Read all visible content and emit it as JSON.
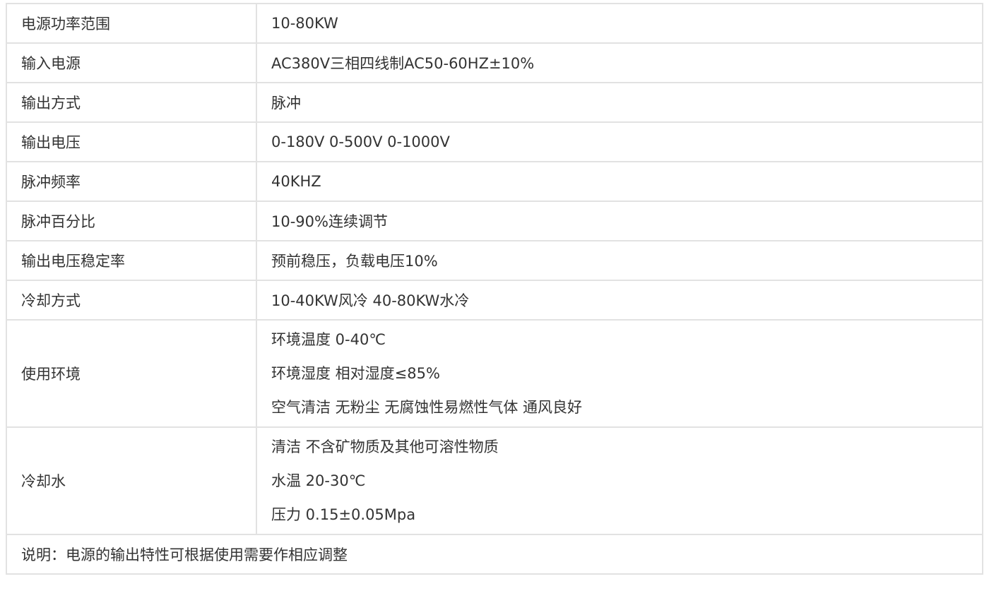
{
  "rows": [
    {
      "label": "电源功率范围",
      "values": [
        "10-80KW"
      ]
    },
    {
      "label": "输入电源",
      "values": [
        "AC380V三相四线制AC50-60HZ±10%"
      ]
    },
    {
      "label": "输出方式",
      "values": [
        "脉冲"
      ]
    },
    {
      "label": "输出电压",
      "values": [
        "0-180V 0-500V 0-1000V"
      ]
    },
    {
      "label": "脉冲频率",
      "values": [
        "40KHZ"
      ]
    },
    {
      "label": "脉冲百分比",
      "values": [
        "10-90%连续调节"
      ]
    },
    {
      "label": "输出电压稳定率",
      "values": [
        "预前稳压，负载电压10%"
      ]
    },
    {
      "label": "冷却方式",
      "values": [
        "10-40KW风冷 40-80KW水冷"
      ]
    },
    {
      "label": "使用环境",
      "values": [
        "环境温度 0-40℃",
        "环境湿度 相对湿度≤85%",
        "空气清洁 无粉尘 无腐蚀性易燃性气体 通风良好"
      ]
    },
    {
      "label": "冷却水",
      "values": [
        "清洁 不含矿物质及其他可溶性物质",
        "水温 20-30℃",
        "压力 0.15±0.05Mpa"
      ]
    }
  ],
  "note": "说明：电源的输出特性可根据使用需要作相应调整"
}
